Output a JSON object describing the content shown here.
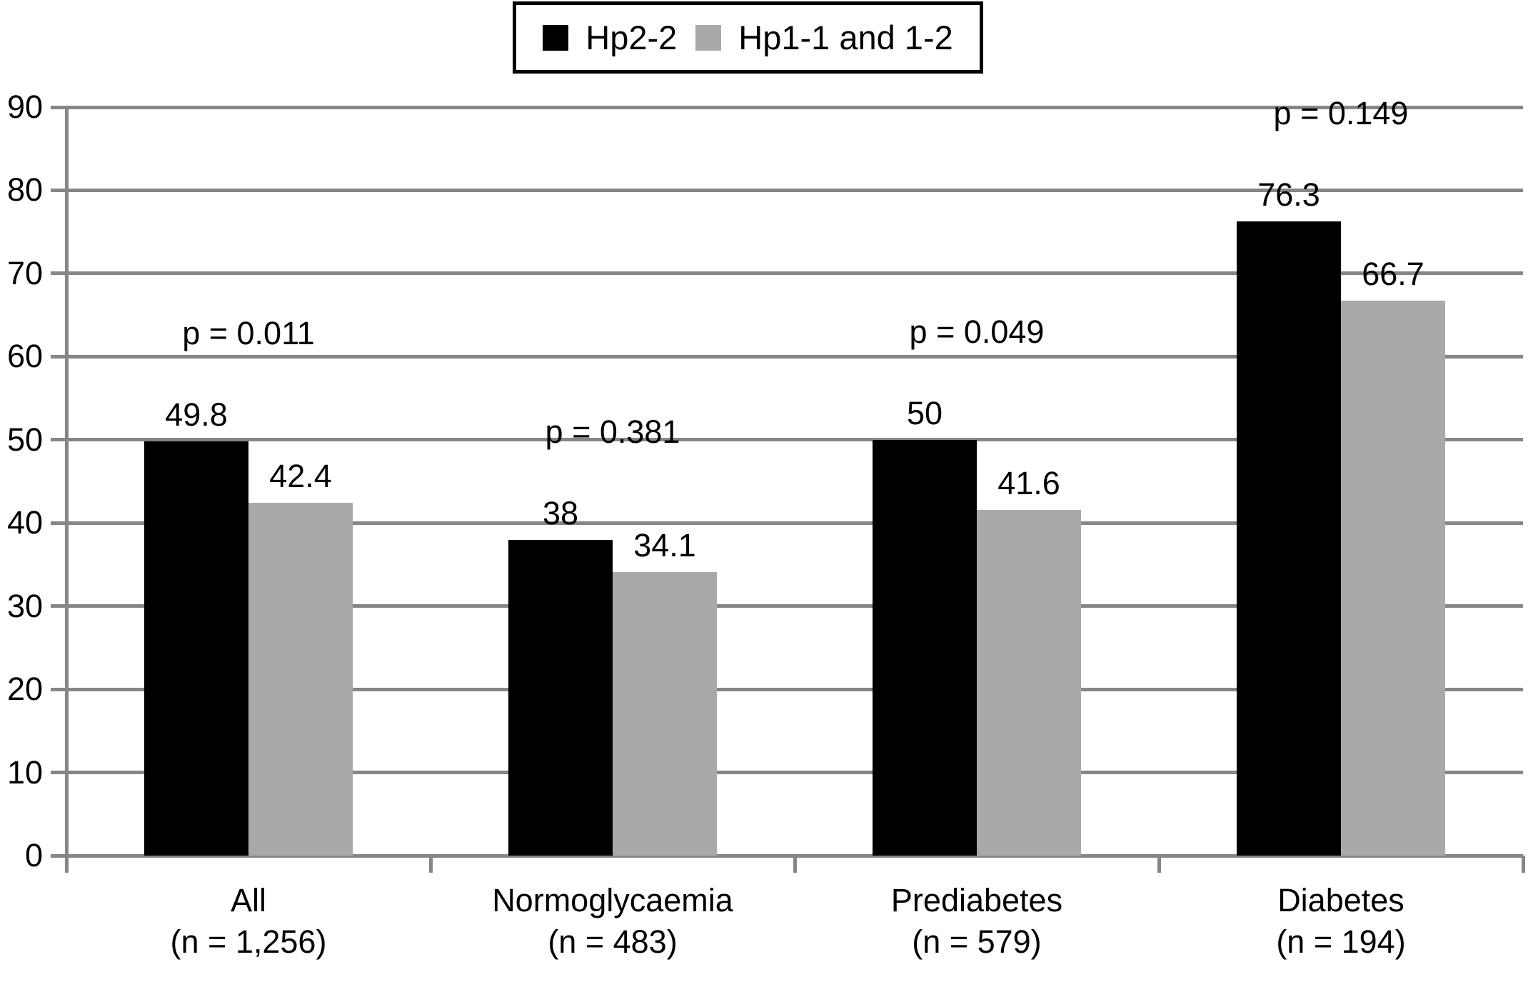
{
  "chart_data": {
    "type": "bar",
    "title": "",
    "xlabel": "",
    "ylabel": "",
    "legend_position": "top",
    "grid": true,
    "background_color": "#ffffff",
    "grid_color": "#868686",
    "text_color": "#000000",
    "y_axis": {
      "min": 0,
      "max": 90,
      "step": 10,
      "tick_labels": [
        "0",
        "10",
        "20",
        "30",
        "40",
        "50",
        "60",
        "70",
        "80",
        "90"
      ]
    },
    "categories": [
      {
        "label": "All",
        "n_label": "(n = 1,256)"
      },
      {
        "label": "Normoglycaemia",
        "n_label": "(n = 483)"
      },
      {
        "label": "Prediabetes",
        "n_label": "(n = 579)"
      },
      {
        "label": "Diabetes",
        "n_label": "(n = 194)"
      }
    ],
    "series": [
      {
        "name": "Hp2-2",
        "color": "#000000",
        "values": [
          49.8,
          38,
          50,
          76.3
        ],
        "value_labels": [
          "49.8",
          "38",
          "50",
          "76.3"
        ]
      },
      {
        "name": "Hp1-1 and 1-2",
        "color": "#a9a9a9",
        "values": [
          42.4,
          34.1,
          41.6,
          66.7
        ],
        "value_labels": [
          "42.4",
          "34.1",
          "41.6",
          "66.7"
        ]
      }
    ],
    "p_values": [
      "p = 0.011",
      "p = 0.381",
      "p = 0.049",
      "p = 0.149"
    ]
  }
}
